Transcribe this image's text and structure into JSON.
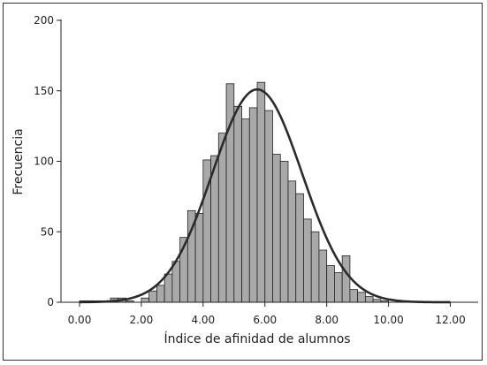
{
  "chart_data": {
    "type": "bar",
    "title": "",
    "xlabel": "Índice de afinidad de alumnos",
    "ylabel": "Frecuencia",
    "xlim": [
      -0.6,
      12.9
    ],
    "ylim": [
      0,
      200
    ],
    "x_ticks": [
      "0.00",
      "2.00",
      "4.00",
      "6.00",
      "8.00",
      "10.00",
      "12.00"
    ],
    "y_ticks": [
      "0",
      "50",
      "100",
      "150",
      "200"
    ],
    "bin_width": 0.25,
    "bins": [
      {
        "x0": 0.0,
        "count": 1
      },
      {
        "x0": 0.25,
        "count": 1
      },
      {
        "x0": 0.5,
        "count": 1
      },
      {
        "x0": 0.75,
        "count": 1
      },
      {
        "x0": 1.0,
        "count": 3
      },
      {
        "x0": 1.25,
        "count": 3
      },
      {
        "x0": 1.5,
        "count": 1
      },
      {
        "x0": 1.75,
        "count": 0
      },
      {
        "x0": 2.0,
        "count": 3
      },
      {
        "x0": 2.25,
        "count": 8
      },
      {
        "x0": 2.5,
        "count": 12
      },
      {
        "x0": 2.75,
        "count": 20
      },
      {
        "x0": 3.0,
        "count": 29
      },
      {
        "x0": 3.25,
        "count": 46
      },
      {
        "x0": 3.5,
        "count": 65
      },
      {
        "x0": 3.75,
        "count": 63
      },
      {
        "x0": 4.0,
        "count": 101
      },
      {
        "x0": 4.25,
        "count": 104
      },
      {
        "x0": 4.5,
        "count": 120
      },
      {
        "x0": 4.75,
        "count": 155
      },
      {
        "x0": 5.0,
        "count": 139
      },
      {
        "x0": 5.25,
        "count": 130
      },
      {
        "x0": 5.5,
        "count": 138
      },
      {
        "x0": 5.75,
        "count": 156
      },
      {
        "x0": 6.0,
        "count": 136
      },
      {
        "x0": 6.25,
        "count": 105
      },
      {
        "x0": 6.5,
        "count": 100
      },
      {
        "x0": 6.75,
        "count": 86
      },
      {
        "x0": 7.0,
        "count": 77
      },
      {
        "x0": 7.25,
        "count": 59
      },
      {
        "x0": 7.5,
        "count": 50
      },
      {
        "x0": 7.75,
        "count": 37
      },
      {
        "x0": 8.0,
        "count": 26
      },
      {
        "x0": 8.25,
        "count": 21
      },
      {
        "x0": 8.5,
        "count": 33
      },
      {
        "x0": 8.75,
        "count": 9
      },
      {
        "x0": 9.0,
        "count": 7
      },
      {
        "x0": 9.25,
        "count": 4
      },
      {
        "x0": 9.5,
        "count": 2
      },
      {
        "x0": 9.75,
        "count": 1
      }
    ],
    "normal_curve": {
      "mean": 5.75,
      "sd": 1.45,
      "peak": 151,
      "x_range": [
        0,
        12
      ]
    },
    "colors": {
      "bar_fill": "#a9a9a9",
      "bar_stroke": "#222222",
      "curve": "#2b2b2b",
      "axis": "#222222"
    }
  }
}
